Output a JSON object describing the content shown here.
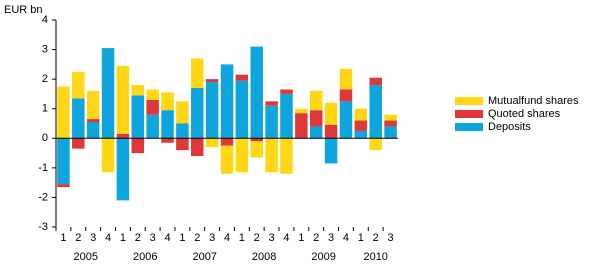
{
  "chart_data": {
    "type": "bar",
    "stacked": true,
    "y_label": "EUR bn",
    "categories": [
      "1",
      "2",
      "3",
      "4",
      "1",
      "2",
      "3",
      "4",
      "1",
      "2",
      "3",
      "4",
      "1",
      "2",
      "3",
      "4",
      "1",
      "2",
      "3",
      "4",
      "1",
      "2",
      "3"
    ],
    "years": [
      "2005",
      "2006",
      "2007",
      "2008",
      "2009",
      "2010"
    ],
    "series": [
      {
        "name": "Deposits",
        "color": "#0ea5dd",
        "values": [
          -1.55,
          1.35,
          0.55,
          3.05,
          -2.1,
          1.45,
          0.8,
          0.95,
          0.5,
          1.7,
          1.9,
          2.5,
          1.95,
          3.1,
          1.1,
          1.5,
          0,
          0.4,
          -0.85,
          1.25,
          0.25,
          1.8,
          0.4
        ]
      },
      {
        "name": "Quoted shares",
        "color": "#e0383a",
        "values": [
          -0.1,
          -0.35,
          0.1,
          0,
          0.15,
          -0.5,
          0.5,
          -0.15,
          -0.4,
          -0.6,
          0.1,
          -0.25,
          0.2,
          -0.1,
          0.15,
          0.15,
          0.85,
          0.55,
          0.45,
          0.4,
          0.35,
          0.25,
          0.2
        ]
      },
      {
        "name": "Mutualfund shares",
        "color": "#ffd714",
        "values": [
          1.75,
          0.9,
          0.95,
          -1.15,
          2.3,
          0.35,
          0.35,
          0.6,
          0.75,
          1.0,
          -0.3,
          -0.95,
          -1.15,
          -0.55,
          -1.15,
          -1.2,
          0.15,
          0.65,
          0.75,
          0.7,
          0.4,
          -0.4,
          0.2
        ]
      }
    ],
    "ylim": [
      -3,
      4
    ],
    "yticks": [
      -3,
      -2,
      -1,
      0,
      1,
      2,
      3,
      4
    ]
  }
}
